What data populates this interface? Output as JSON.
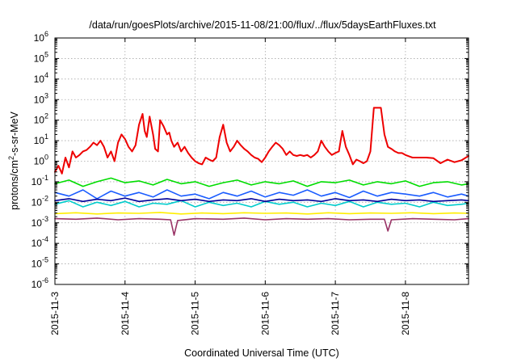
{
  "chart_data": {
    "type": "line",
    "title": "/data/run/goesPlots/archive/2015-11-08/21:00/flux/../flux/5daysEarthFluxes.txt",
    "xlabel": "Coordinated Universal Time (UTC)",
    "ylabel": {
      "pre": "protons/cm",
      "sup": "2",
      "post": "-s-sr-MeV"
    },
    "xlim": [
      0,
      5.9
    ],
    "x_ticks": [
      {
        "x": 0,
        "label": "2015-11-3"
      },
      {
        "x": 1,
        "label": "2015-11-4"
      },
      {
        "x": 2,
        "label": "2015-11-5"
      },
      {
        "x": 3,
        "label": "2015-11-6"
      },
      {
        "x": 4,
        "label": "2015-11-7"
      },
      {
        "x": 5,
        "label": "2015-11-8"
      }
    ],
    "y_scale": "log",
    "ylim_exponent": [
      -6,
      6
    ],
    "y_ticks": [
      {
        "exp": -6,
        "base": "10",
        "sup": "-6"
      },
      {
        "exp": -5,
        "base": "10",
        "sup": "-5"
      },
      {
        "exp": -4,
        "base": "10",
        "sup": "-4"
      },
      {
        "exp": -3,
        "base": "10",
        "sup": "-3"
      },
      {
        "exp": -2,
        "base": "10",
        "sup": "-2"
      },
      {
        "exp": -1,
        "base": "10",
        "sup": "-1"
      },
      {
        "exp": 0,
        "base": "10",
        "sup": "0"
      },
      {
        "exp": 1,
        "base": "10",
        "sup": "1"
      },
      {
        "exp": 2,
        "base": "10",
        "sup": "2"
      },
      {
        "exp": 3,
        "base": "10",
        "sup": "3"
      },
      {
        "exp": 4,
        "base": "10",
        "sup": "4"
      },
      {
        "exp": 5,
        "base": "10",
        "sup": "5"
      },
      {
        "exp": 6,
        "base": "10",
        "sup": "6"
      }
    ],
    "grid": true,
    "series": [
      {
        "color": "#ee0000",
        "x": [
          0,
          0.05,
          0.1,
          0.15,
          0.2,
          0.25,
          0.3,
          0.35,
          0.4,
          0.45,
          0.5,
          0.55,
          0.6,
          0.65,
          0.7,
          0.75,
          0.8,
          0.85,
          0.9,
          0.95,
          1.0,
          1.05,
          1.1,
          1.15,
          1.2,
          1.25,
          1.28,
          1.31,
          1.35,
          1.4,
          1.43,
          1.47,
          1.5,
          1.55,
          1.6,
          1.63,
          1.66,
          1.7,
          1.75,
          1.8,
          1.85,
          1.9,
          1.95,
          2.0,
          2.05,
          2.1,
          2.15,
          2.2,
          2.25,
          2.3,
          2.35,
          2.4,
          2.45,
          2.5,
          2.55,
          2.6,
          2.65,
          2.7,
          2.75,
          2.8,
          2.85,
          2.9,
          2.95,
          3.0,
          3.05,
          3.1,
          3.15,
          3.2,
          3.25,
          3.3,
          3.35,
          3.4,
          3.45,
          3.5,
          3.55,
          3.6,
          3.65,
          3.7,
          3.75,
          3.8,
          3.85,
          3.9,
          3.95,
          4.0,
          4.05,
          4.1,
          4.15,
          4.2,
          4.25,
          4.3,
          4.35,
          4.4,
          4.45,
          4.5,
          4.55,
          4.6,
          4.65,
          4.7,
          4.75,
          4.8,
          4.85,
          4.9,
          4.95,
          5.0,
          5.1,
          5.2,
          5.3,
          5.4,
          5.5,
          5.6,
          5.7,
          5.8,
          5.9
        ],
        "y": [
          0.3,
          0.6,
          0.25,
          1.5,
          0.5,
          3,
          1.5,
          2,
          3,
          3.5,
          5,
          8,
          6,
          10,
          5,
          1.5,
          3,
          1,
          8,
          20,
          12,
          5,
          3,
          6,
          60,
          200,
          30,
          15,
          150,
          20,
          4,
          3,
          100,
          50,
          20,
          25,
          10,
          5,
          8,
          3,
          5,
          2.5,
          1.5,
          1,
          0.8,
          0.7,
          1.5,
          1.2,
          1,
          1.5,
          15,
          60,
          8,
          3,
          5,
          10,
          6,
          4,
          3,
          2,
          1.5,
          1.3,
          0.9,
          1.5,
          3,
          5,
          8,
          6,
          4,
          2,
          3,
          2,
          1.8,
          2,
          1.8,
          2,
          1.5,
          2,
          3,
          10,
          5,
          3,
          2,
          2.5,
          3,
          30,
          5,
          2,
          0.7,
          1.2,
          1,
          0.8,
          1,
          3,
          400,
          400,
          400,
          20,
          5,
          4,
          3,
          2.5,
          2.5,
          2,
          1.5,
          1.5,
          1.5,
          1.4,
          0.8,
          1.2,
          0.9,
          1.1,
          1.8
        ]
      },
      {
        "color": "#00dd00",
        "x": [
          0,
          0.2,
          0.4,
          0.6,
          0.8,
          1.0,
          1.2,
          1.4,
          1.6,
          1.8,
          2.0,
          2.2,
          2.4,
          2.6,
          2.8,
          3.0,
          3.2,
          3.4,
          3.6,
          3.8,
          4.0,
          4.2,
          4.4,
          4.6,
          4.8,
          5.0,
          5.2,
          5.4,
          5.6,
          5.8,
          5.9
        ],
        "y": [
          0.08,
          0.12,
          0.06,
          0.1,
          0.15,
          0.09,
          0.11,
          0.07,
          0.13,
          0.08,
          0.1,
          0.06,
          0.09,
          0.12,
          0.07,
          0.1,
          0.08,
          0.11,
          0.06,
          0.1,
          0.09,
          0.12,
          0.07,
          0.1,
          0.08,
          0.11,
          0.06,
          0.09,
          0.1,
          0.07,
          0.08
        ]
      },
      {
        "color": "#1a5cff",
        "x": [
          0,
          0.2,
          0.4,
          0.6,
          0.8,
          1.0,
          1.2,
          1.4,
          1.6,
          1.8,
          2.0,
          2.2,
          2.4,
          2.6,
          2.8,
          3.0,
          3.2,
          3.4,
          3.6,
          3.8,
          4.0,
          4.2,
          4.4,
          4.6,
          4.8,
          5.0,
          5.2,
          5.4,
          5.6,
          5.8,
          5.9
        ],
        "y": [
          0.03,
          0.02,
          0.04,
          0.015,
          0.035,
          0.02,
          0.03,
          0.018,
          0.04,
          0.02,
          0.025,
          0.015,
          0.03,
          0.02,
          0.035,
          0.018,
          0.03,
          0.022,
          0.04,
          0.02,
          0.03,
          0.017,
          0.035,
          0.02,
          0.03,
          0.025,
          0.02,
          0.03,
          0.018,
          0.025,
          0.02
        ]
      },
      {
        "color": "#00cccc",
        "x": [
          0,
          0.2,
          0.4,
          0.6,
          0.8,
          1.0,
          1.2,
          1.4,
          1.6,
          1.8,
          2.0,
          2.2,
          2.4,
          2.6,
          2.8,
          3.0,
          3.2,
          3.4,
          3.6,
          3.8,
          4.0,
          4.2,
          4.4,
          4.6,
          4.8,
          5.0,
          5.2,
          5.4,
          5.6,
          5.8,
          5.9
        ],
        "y": [
          0.008,
          0.012,
          0.006,
          0.01,
          0.007,
          0.011,
          0.006,
          0.009,
          0.008,
          0.012,
          0.006,
          0.01,
          0.007,
          0.009,
          0.006,
          0.011,
          0.008,
          0.01,
          0.006,
          0.009,
          0.007,
          0.011,
          0.006,
          0.01,
          0.008,
          0.009,
          0.006,
          0.01,
          0.007,
          0.008,
          0.009
        ]
      },
      {
        "color": "#000099",
        "x": [
          0,
          0.2,
          0.4,
          0.6,
          0.8,
          1.0,
          1.2,
          1.4,
          1.6,
          1.8,
          2.0,
          2.2,
          2.4,
          2.6,
          2.8,
          3.0,
          3.2,
          3.4,
          3.6,
          3.8,
          4.0,
          4.2,
          4.4,
          4.6,
          4.8,
          5.0,
          5.2,
          5.4,
          5.6,
          5.8,
          5.9
        ],
        "y": [
          0.012,
          0.015,
          0.011,
          0.014,
          0.012,
          0.016,
          0.011,
          0.013,
          0.015,
          0.012,
          0.014,
          0.011,
          0.013,
          0.012,
          0.015,
          0.011,
          0.014,
          0.012,
          0.013,
          0.011,
          0.015,
          0.012,
          0.013,
          0.011,
          0.014,
          0.012,
          0.013,
          0.011,
          0.012,
          0.013,
          0.012
        ]
      },
      {
        "color": "#ffee00",
        "x": [
          0,
          0.3,
          0.6,
          0.9,
          1.2,
          1.5,
          1.8,
          2.1,
          2.4,
          2.7,
          3.0,
          3.3,
          3.6,
          3.9,
          4.2,
          4.5,
          4.8,
          5.1,
          5.4,
          5.7,
          5.9
        ],
        "y": [
          0.0028,
          0.0031,
          0.0027,
          0.003,
          0.0029,
          0.0032,
          0.0027,
          0.003,
          0.0028,
          0.0031,
          0.0029,
          0.003,
          0.0027,
          0.0031,
          0.0028,
          0.003,
          0.0029,
          0.0031,
          0.0028,
          0.003,
          0.0029
        ]
      },
      {
        "color": "#993366",
        "x": [
          0,
          0.3,
          0.6,
          0.9,
          1.2,
          1.5,
          1.65,
          1.7,
          1.75,
          2.0,
          2.4,
          2.7,
          3.0,
          3.3,
          3.6,
          3.9,
          4.2,
          4.5,
          4.7,
          4.75,
          4.8,
          5.1,
          5.4,
          5.7,
          5.9
        ],
        "y": [
          0.0016,
          0.0015,
          0.0017,
          0.0014,
          0.0016,
          0.0015,
          0.0014,
          0.00025,
          0.0013,
          0.0016,
          0.0015,
          0.0017,
          0.0014,
          0.0016,
          0.0015,
          0.0016,
          0.0014,
          0.0015,
          0.0015,
          0.0004,
          0.0014,
          0.0016,
          0.0015,
          0.0014,
          0.0016
        ]
      }
    ]
  }
}
